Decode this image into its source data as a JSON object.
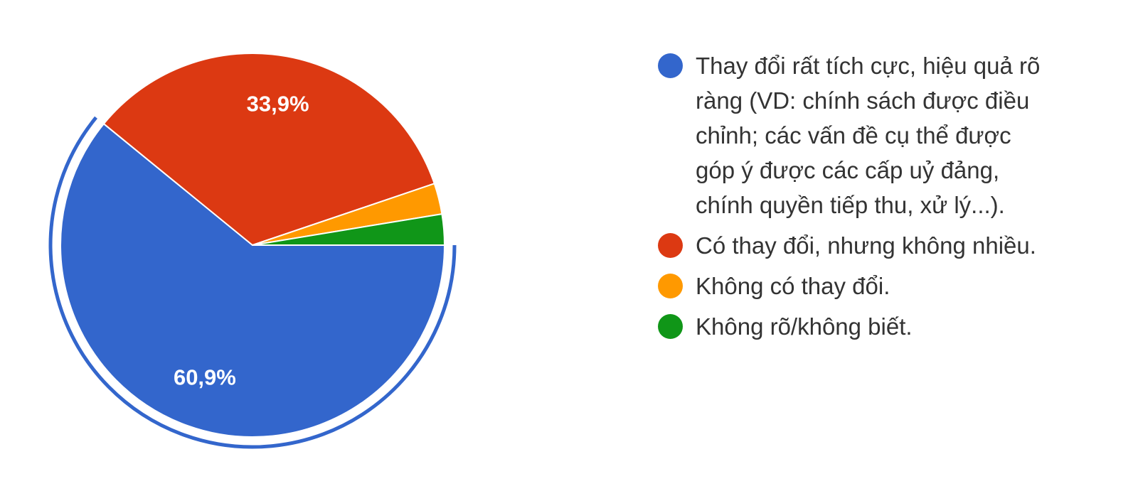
{
  "chart_data": {
    "type": "pie",
    "categories": [
      "Thay đổi rất tích cực, hiệu quả rõ ràng (VD: chính sách được điều chỉnh; các vấn đề cụ thể được góp ý được các cấp uỷ đảng, chính quyền tiếp thu, xử lý...).",
      "Có thay đổi, nhưng không nhiều.",
      "Không có thay đổi.",
      "Không rõ/không biết."
    ],
    "values": [
      60.9,
      33.9,
      2.6,
      2.6
    ],
    "value_labels": [
      "60,9%",
      "33,9%",
      null,
      null
    ],
    "colors": [
      "#3366cc",
      "#dc3912",
      "#ff9900",
      "#109618"
    ],
    "legend": "right"
  }
}
